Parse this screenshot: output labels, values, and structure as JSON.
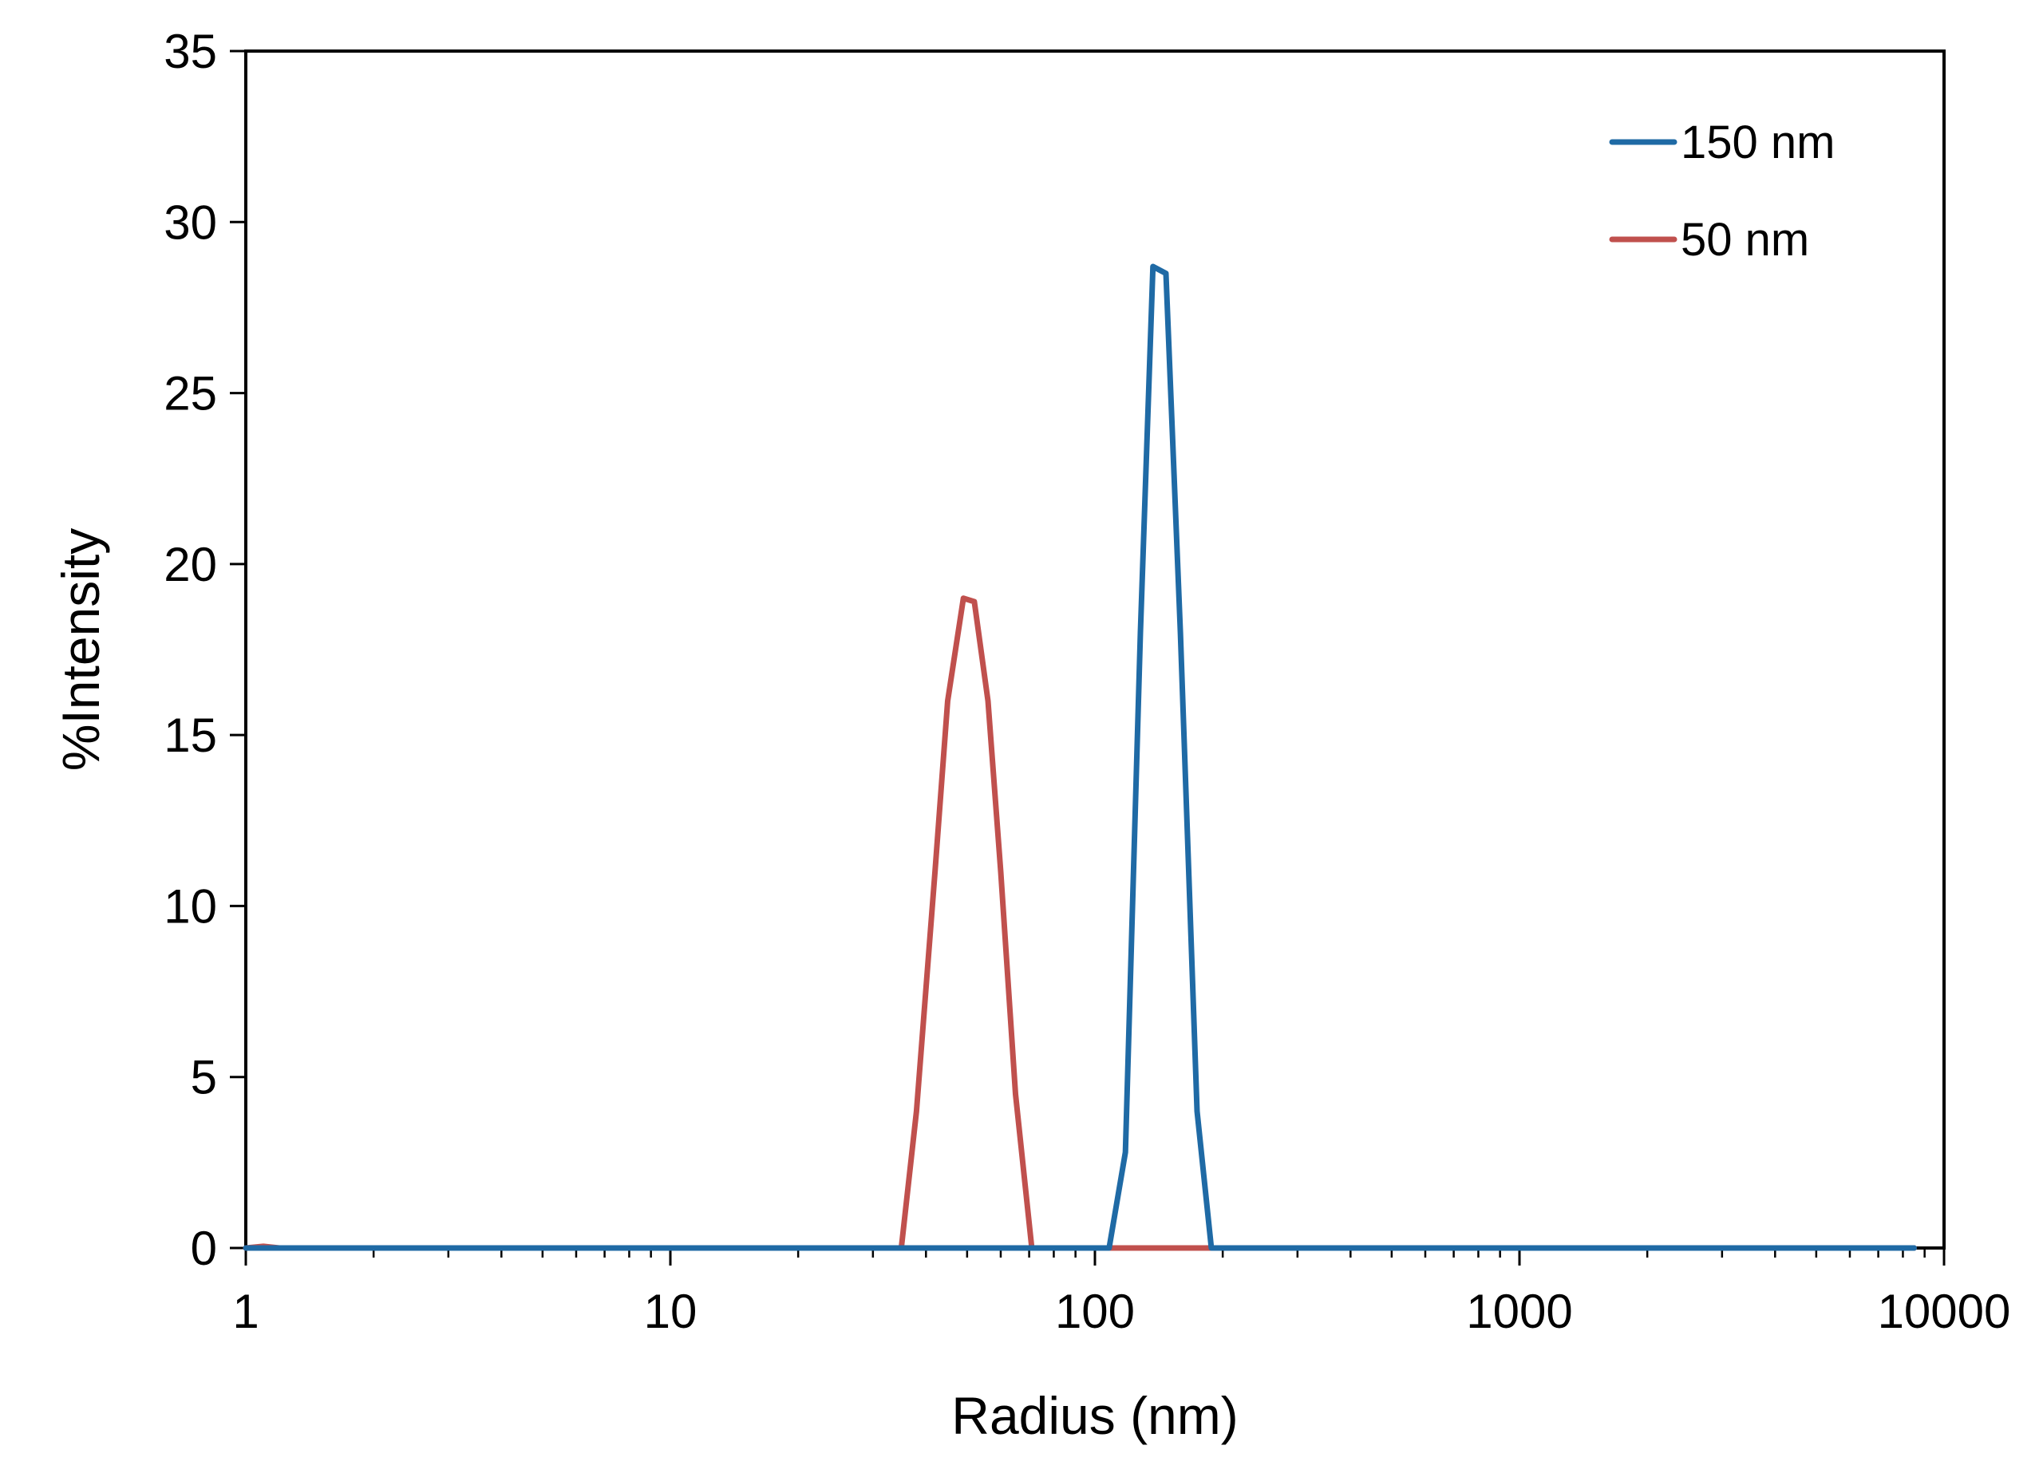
{
  "chart_data": {
    "type": "line",
    "title": "",
    "xlabel": "Radius (nm)",
    "ylabel": "%Intensity",
    "x_scale": "log",
    "xlim": [
      1,
      10000
    ],
    "ylim": [
      0,
      35
    ],
    "x_ticks": [
      1,
      10,
      100,
      1000,
      10000
    ],
    "x_tick_labels": [
      "1",
      "10",
      "100",
      "1000",
      "10000"
    ],
    "y_ticks": [
      0,
      5,
      10,
      15,
      20,
      25,
      30,
      35
    ],
    "y_tick_labels": [
      "0",
      "5",
      "10",
      "15",
      "20",
      "25",
      "30",
      "35"
    ],
    "grid": false,
    "legend_position": "top-right",
    "series": [
      {
        "name": "150 nm",
        "color": "#1f6aa5",
        "points": [
          [
            1,
            0
          ],
          [
            10,
            0
          ],
          [
            100,
            0
          ],
          [
            108,
            0
          ],
          [
            118,
            2.8
          ],
          [
            128,
            18
          ],
          [
            137,
            28.7
          ],
          [
            147,
            28.5
          ],
          [
            159,
            18
          ],
          [
            174,
            4
          ],
          [
            188,
            0
          ],
          [
            1000,
            0
          ],
          [
            8500,
            0
          ]
        ]
      },
      {
        "name": "50 nm",
        "color": "#c0504d",
        "points": [
          [
            1,
            0
          ],
          [
            1.1,
            0.05
          ],
          [
            1.2,
            0
          ],
          [
            10,
            0
          ],
          [
            35,
            0
          ],
          [
            38,
            4
          ],
          [
            42,
            11
          ],
          [
            45,
            16
          ],
          [
            49,
            19
          ],
          [
            52,
            18.9
          ],
          [
            56,
            16
          ],
          [
            60,
            11
          ],
          [
            65,
            4.5
          ],
          [
            71,
            0
          ],
          [
            100,
            0
          ],
          [
            1000,
            0
          ],
          [
            8500,
            0
          ]
        ]
      }
    ]
  }
}
